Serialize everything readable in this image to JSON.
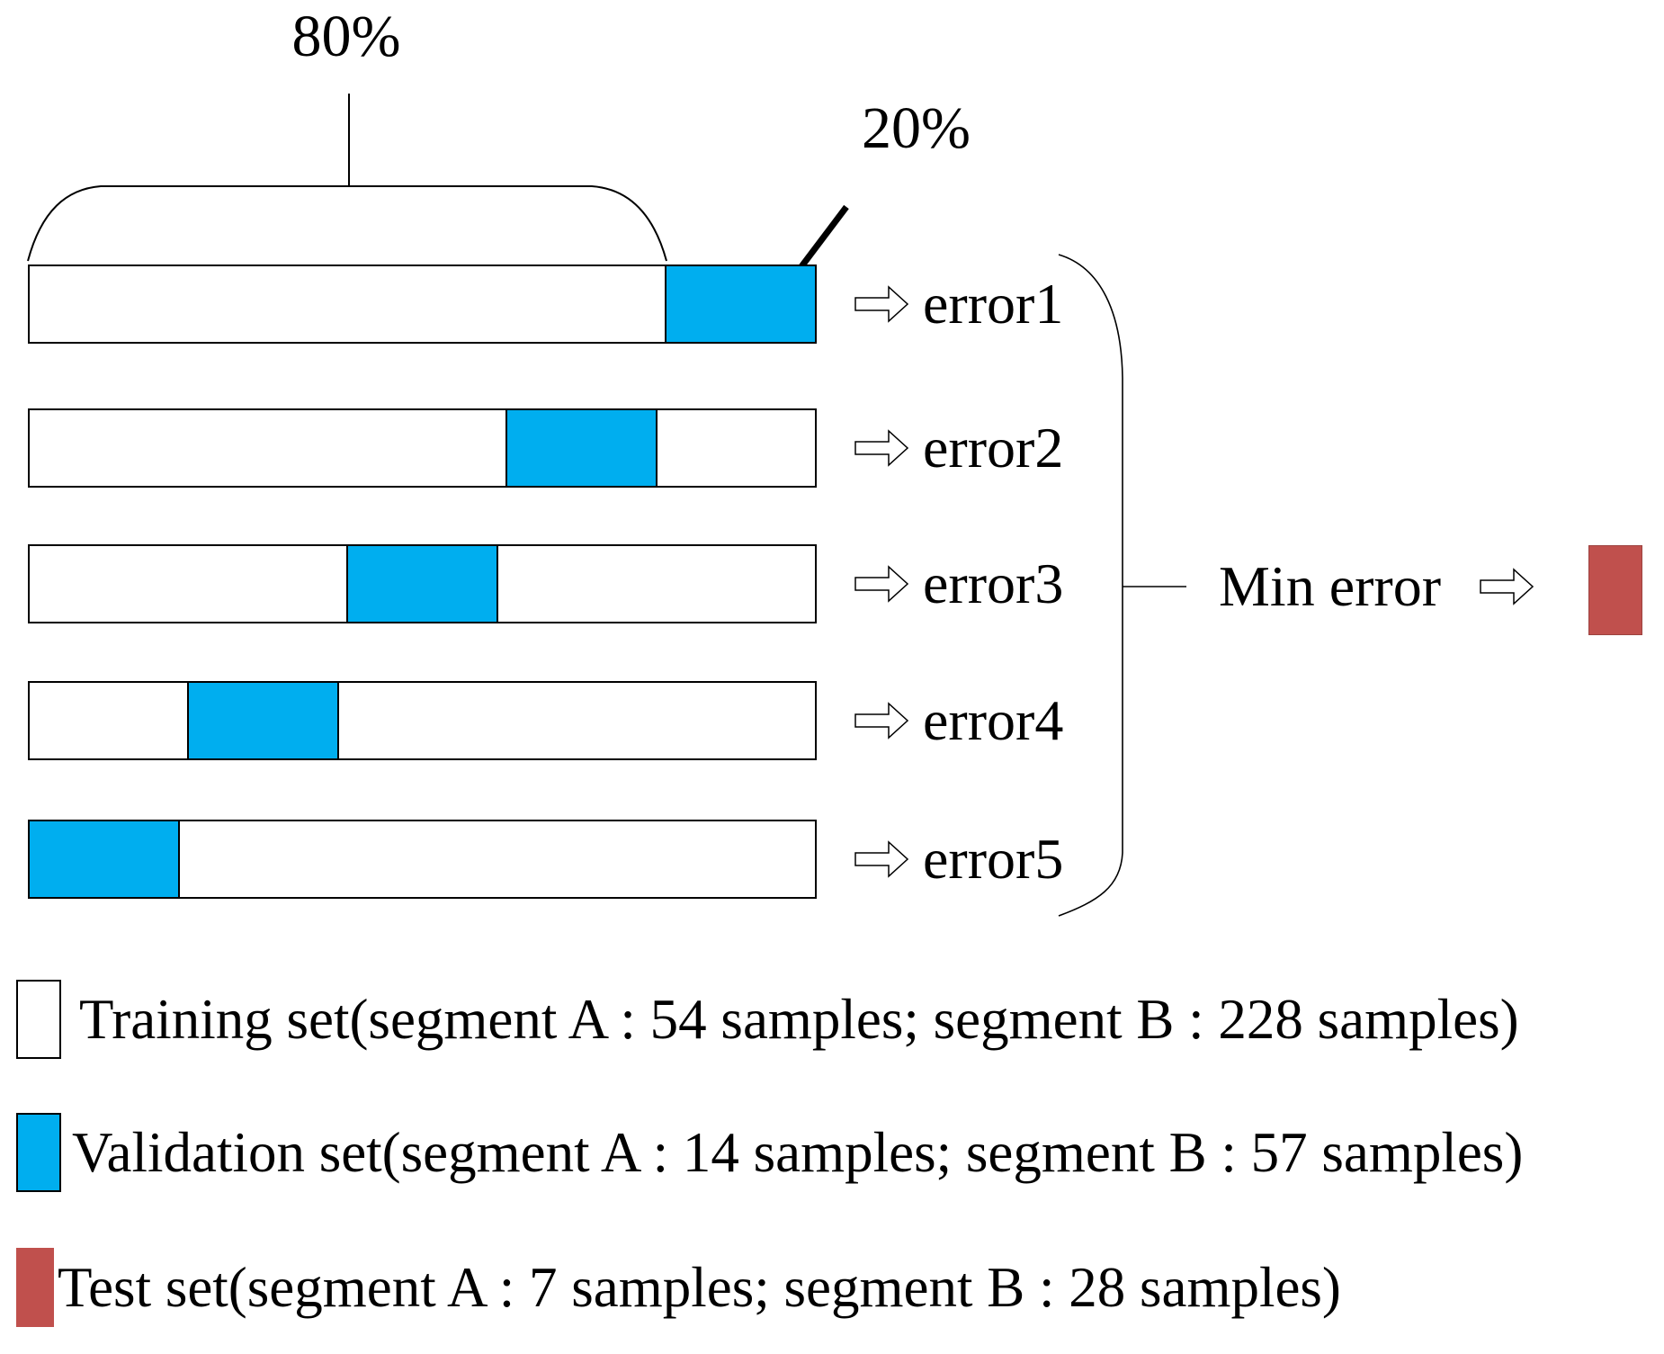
{
  "diagram": {
    "split_labels": {
      "train": "80%",
      "validation": "20%"
    },
    "rows": [
      {
        "label": "error1",
        "validation_fold": 5
      },
      {
        "label": "error2",
        "validation_fold": 4
      },
      {
        "label": "error3",
        "validation_fold": 3
      },
      {
        "label": "error4",
        "validation_fold": 2
      },
      {
        "label": "error5",
        "validation_fold": 1
      }
    ],
    "aggregate_label": "Min error"
  },
  "colors": {
    "training": "#FFFFFF",
    "validation": "#00AEEF",
    "test": "#C0504D",
    "line": "#000000"
  },
  "legend": [
    {
      "type": "training",
      "label": "Training set(segment A : 54 samples; segment B : 228 samples)"
    },
    {
      "type": "validation",
      "label": "Validation set(segment A : 14 samples; segment B : 57 samples)"
    },
    {
      "type": "test",
      "label": "Test set(segment A : 7 samples; segment B : 28 samples)"
    }
  ]
}
